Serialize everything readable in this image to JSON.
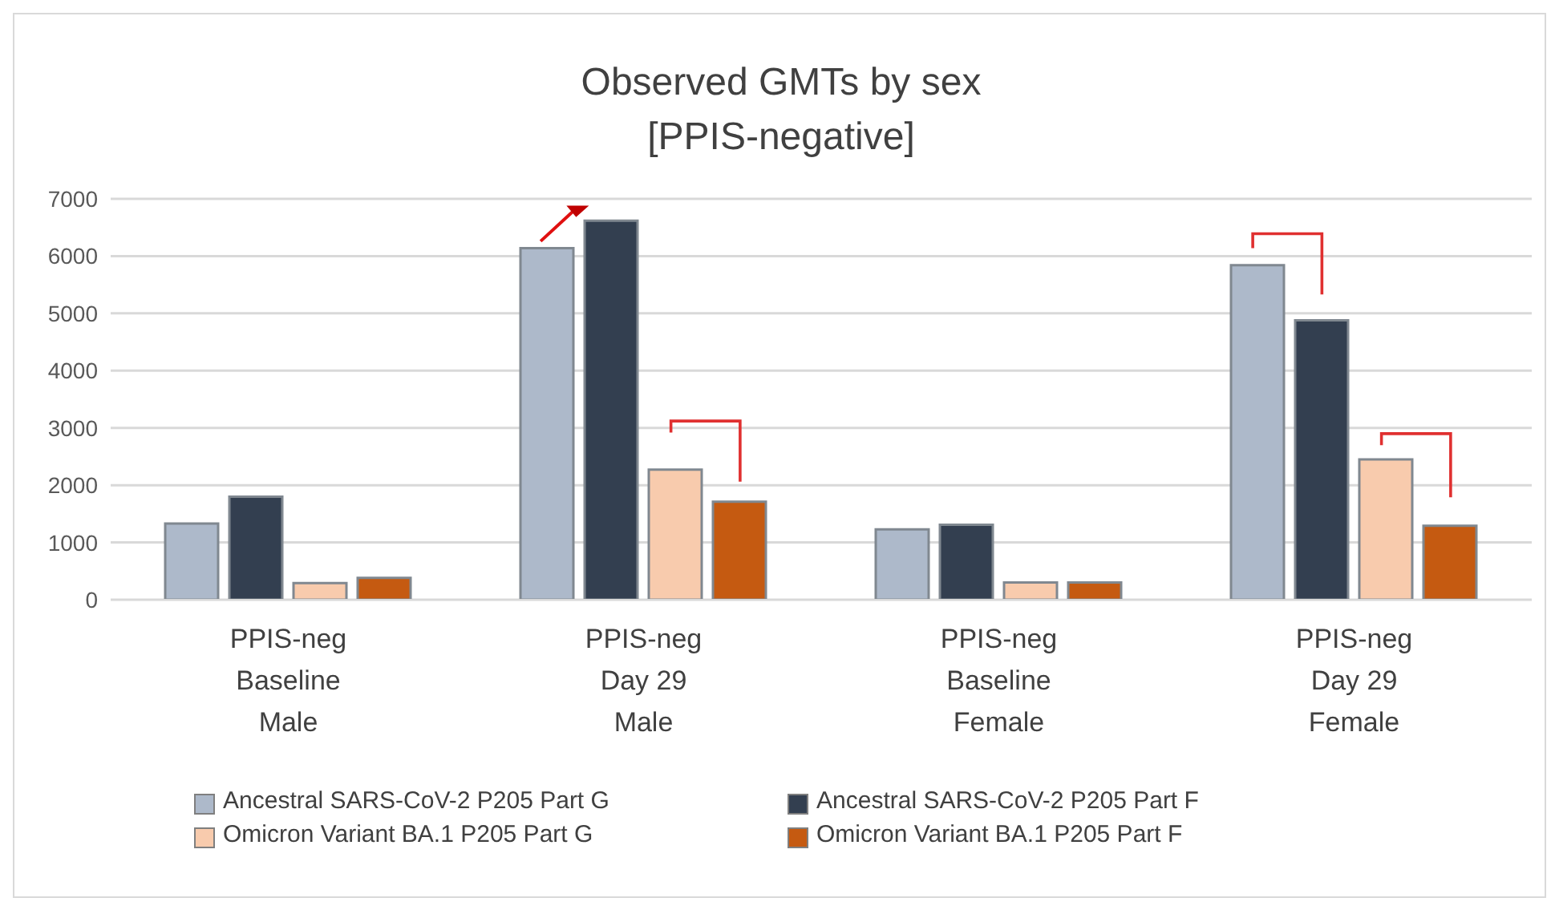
{
  "chart_data": {
    "type": "bar",
    "title": "Observed GMTs by sex\n[PPIS-negative]",
    "categories": [
      "PPIS-neg\nBaseline\nMale",
      "PPIS-neg\nDay 29\nMale",
      "PPIS-neg\nBaseline\nFemale",
      "PPIS-neg\nDay 29\nFemale"
    ],
    "series": [
      {
        "name": "Ancestral SARS-CoV-2 P205 Part G",
        "color": "#adb9ca",
        "values": [
          1330,
          6140,
          1230,
          5840
        ]
      },
      {
        "name": "Ancestral SARS-CoV-2 P205 Part F",
        "color": "#333f50",
        "values": [
          1800,
          6620,
          1310,
          4880
        ]
      },
      {
        "name": "Omicron Variant BA.1 P205 Part G",
        "color": "#f8cbad",
        "values": [
          290,
          2270,
          300,
          2450
        ]
      },
      {
        "name": "Omicron Variant BA.1 P205 Part F",
        "color": "#c55a11",
        "values": [
          380,
          1710,
          300,
          1290
        ]
      }
    ],
    "ylim": [
      0,
      7000
    ],
    "yticks": [
      0,
      1000,
      2000,
      3000,
      4000,
      5000,
      6000,
      7000
    ],
    "grid": "y",
    "legend": "bottom"
  }
}
